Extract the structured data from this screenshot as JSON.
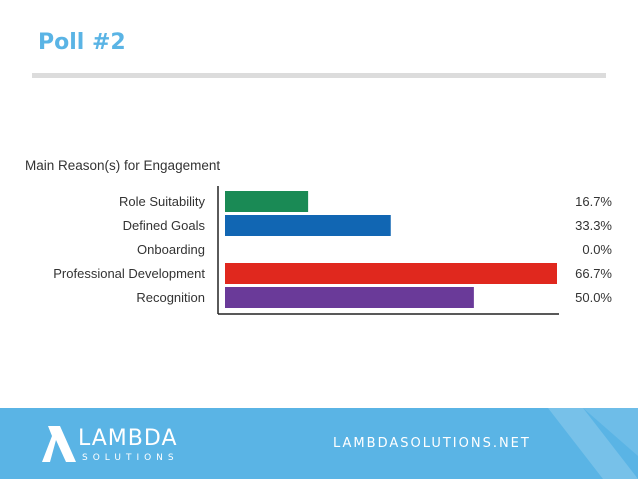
{
  "slide": {
    "title": "Poll #2"
  },
  "chart_data": {
    "type": "bar",
    "orientation": "horizontal",
    "title": "Main Reason(s) for Engagement",
    "categories": [
      "Role Suitability",
      "Defined Goals",
      "Onboarding",
      "Professional Development",
      "Recognition"
    ],
    "values": [
      16.7,
      33.3,
      0.0,
      66.7,
      50.0
    ],
    "value_labels": [
      "16.7%",
      "33.3%",
      "0.0%",
      "66.7%",
      "50.0%"
    ],
    "colors": [
      "#1a8a55",
      "#1166b3",
      "#ffffff",
      "#e0281e",
      "#6a3a99"
    ],
    "xlim": [
      0,
      66.7
    ],
    "unit": "%"
  },
  "footer": {
    "brand_name": "LAMBDA",
    "brand_sub": "SOLUTIONS",
    "url": "LAMBDASOLUTIONS.NET",
    "background_color": "#5ab4e5"
  }
}
